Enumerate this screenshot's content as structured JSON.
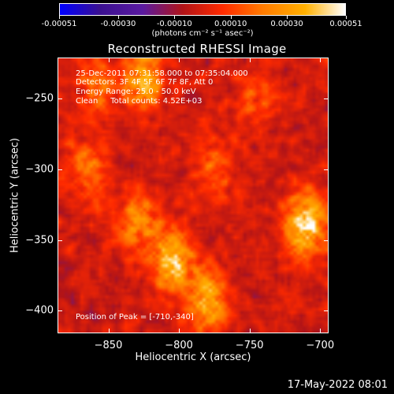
{
  "colorbar": {
    "tick_labels": [
      "-0.00051",
      "-0.00030",
      "-0.00010",
      "0.00010",
      "0.00030",
      "0.00051"
    ],
    "tick_values": [
      -0.00051,
      -0.0003,
      -0.0001,
      0.0001,
      0.0003,
      0.00051
    ],
    "range": [
      -0.00051,
      0.00051
    ],
    "unit_label": "(photons cm⁻² s⁻¹ asec⁻²)",
    "colors": [
      "#0000ff",
      "#3a1090",
      "#5a1aa0",
      "#b01418",
      "#ff2a00",
      "#ff7a00",
      "#ffb000",
      "#ffffff"
    ]
  },
  "annotations": {
    "time_range": "25-Dec-2011 07:31:58.000 to 07:35:04.000",
    "detectors": "Detectors: 3F 4F 5F 6F 7F 8F, Att 0",
    "energy": "Energy Range: 25.0 - 50.0 keV",
    "clean": "Clean     Total counts: 4.52E+03",
    "peak": "Position of Peak = [-710,-340]"
  },
  "footer": {
    "timestamp": "17-May-2022 08:01"
  },
  "chart_data": {
    "type": "heatmap",
    "title": "Reconstructed RHESSI Image",
    "xlabel": "Heliocentric X (arcsec)",
    "ylabel": "Heliocentric Y (arcsec)",
    "xlim": [
      -886,
      -694
    ],
    "ylim": [
      -416,
      -221
    ],
    "x_ticks": [
      -850,
      -800,
      -750,
      -700
    ],
    "y_ticks": [
      -250,
      -300,
      -350,
      -400
    ],
    "x_tick_labels": [
      "−850",
      "−800",
      "−750",
      "−700"
    ],
    "y_tick_labels": [
      "−250",
      "−300",
      "−350",
      "−400"
    ],
    "peak_position": [
      -710,
      -340
    ],
    "bright_regions": [
      {
        "x": -710,
        "y": -340,
        "value": 0.00051
      },
      {
        "x": -805,
        "y": -365,
        "value": 0.00045
      },
      {
        "x": -780,
        "y": -395,
        "value": 0.0004
      },
      {
        "x": -825,
        "y": -235,
        "value": 0.00038
      },
      {
        "x": -830,
        "y": -338,
        "value": 0.0003
      },
      {
        "x": -865,
        "y": -300,
        "value": 0.00025
      },
      {
        "x": -860,
        "y": -240,
        "value": 0.00022
      },
      {
        "x": -775,
        "y": -300,
        "value": 0.0002
      },
      {
        "x": -745,
        "y": -250,
        "value": 0.00018
      }
    ],
    "grid": false
  }
}
